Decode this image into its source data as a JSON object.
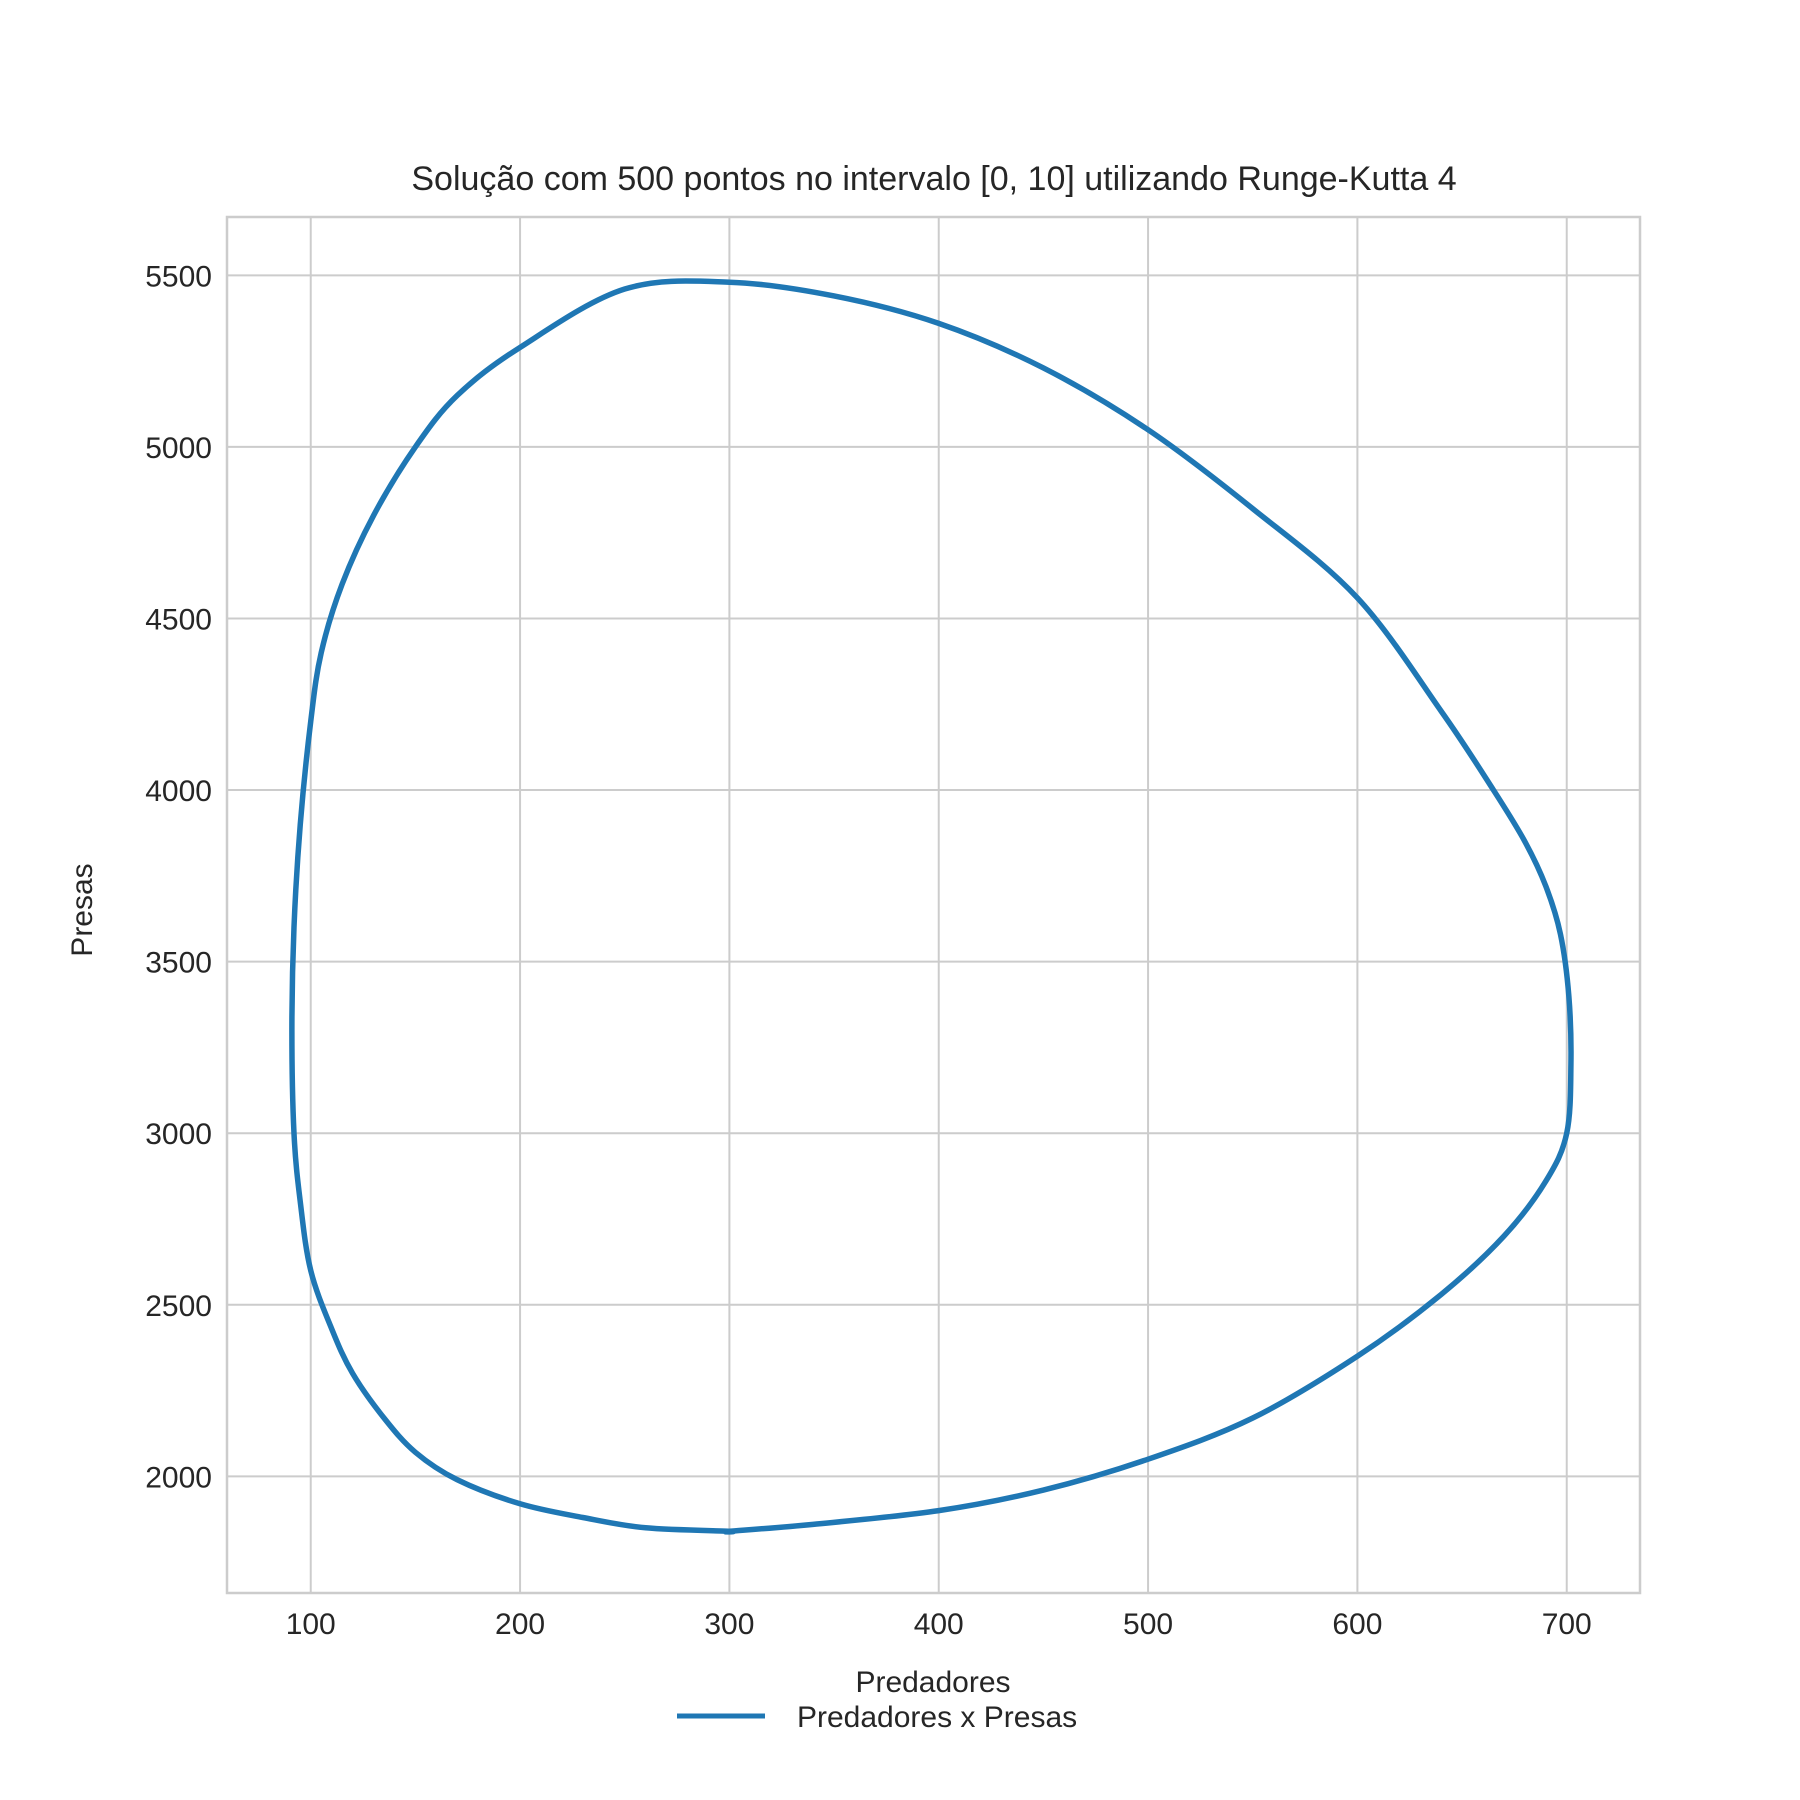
{
  "chart_data": {
    "type": "line",
    "title": "Solução com 500 pontos no intervalo [0, 10] utilizando Runge-Kutta 4",
    "xlabel": "Predadores",
    "ylabel": "Presas",
    "xlim": [
      60,
      735
    ],
    "ylim": [
      1660,
      5670
    ],
    "x_ticks": [
      100,
      200,
      300,
      400,
      500,
      600,
      700
    ],
    "y_ticks": [
      2000,
      2500,
      3000,
      3500,
      4000,
      4500,
      5000,
      5500
    ],
    "grid": true,
    "legend": {
      "placement": "bottom-center",
      "entries": [
        "Predadores x Presas"
      ]
    },
    "colors": {
      "series": "#1f77b4",
      "grid": "#cccccc",
      "text": "#262626"
    },
    "series": [
      {
        "name": "Predadores x Presas",
        "x": [
          300,
          340,
          400,
          450,
          500,
          550,
          600,
          640,
          670,
          690,
          700,
          702,
          701,
          697,
          690,
          680,
          665,
          640,
          600,
          550,
          500,
          450,
          400,
          350,
          300,
          250,
          200,
          170,
          150,
          130,
          115,
          105,
          100,
          95,
          92,
          91,
          92,
          95,
          100,
          110,
          120,
          135,
          150,
          170,
          200,
          230,
          260,
          300
        ],
        "y": [
          1840,
          1860,
          1900,
          1960,
          2050,
          2170,
          2350,
          2530,
          2700,
          2860,
          3000,
          3200,
          3400,
          3580,
          3720,
          3850,
          4000,
          4230,
          4560,
          4820,
          5050,
          5230,
          5360,
          5440,
          5480,
          5460,
          5290,
          5150,
          5000,
          4800,
          4600,
          4400,
          4200,
          3900,
          3600,
          3300,
          3000,
          2800,
          2600,
          2430,
          2300,
          2170,
          2070,
          1990,
          1920,
          1880,
          1850,
          1840
        ]
      }
    ]
  }
}
